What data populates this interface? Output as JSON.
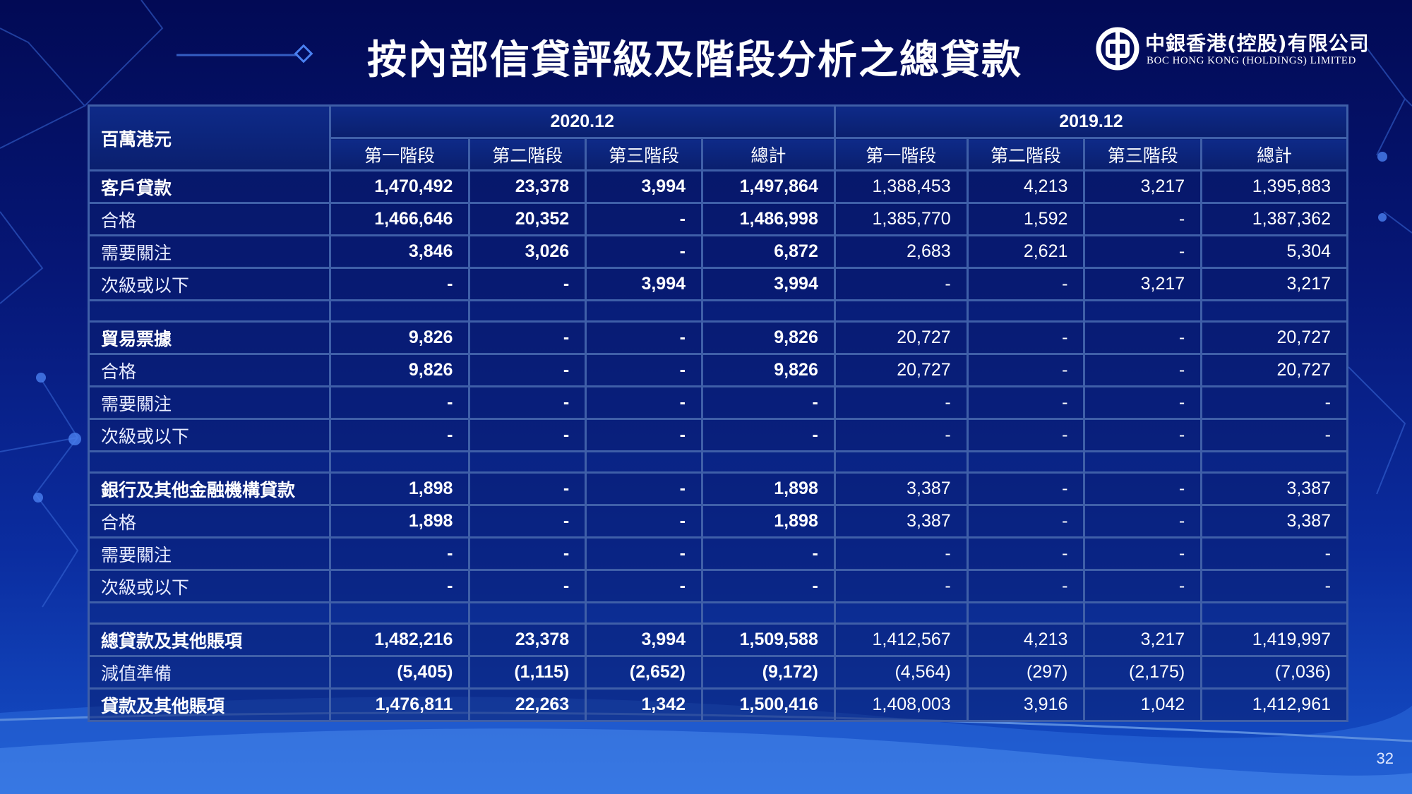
{
  "title": "按內部信貸評級及階段分析之總貸款",
  "logo": {
    "cn": "中銀香港(控股)有限公司",
    "en": "BOC HONG KONG (HOLDINGS) LIMITED",
    "icon": "boc-logo-icon"
  },
  "table": {
    "unit": "百萬港元",
    "periods": [
      "2020.12",
      "2019.12"
    ],
    "subheaders": [
      "第一階段",
      "第二階段",
      "第三階段",
      "總計",
      "第一階段",
      "第二階段",
      "第三階段",
      "總計"
    ],
    "rows": [
      {
        "type": "main",
        "label": "客戶貸款",
        "values": [
          "1,470,492",
          "23,378",
          "3,994",
          "1,497,864",
          "1,388,453",
          "4,213",
          "3,217",
          "1,395,883"
        ]
      },
      {
        "type": "sub",
        "label": "合格",
        "values": [
          "1,466,646",
          "20,352",
          "-",
          "1,486,998",
          "1,385,770",
          "1,592",
          "-",
          "1,387,362"
        ]
      },
      {
        "type": "sub",
        "label": "需要關注",
        "values": [
          "3,846",
          "3,026",
          "-",
          "6,872",
          "2,683",
          "2,621",
          "-",
          "5,304"
        ]
      },
      {
        "type": "sub",
        "label": "次級或以下",
        "values": [
          "-",
          "-",
          "3,994",
          "3,994",
          "-",
          "-",
          "3,217",
          "3,217"
        ]
      },
      {
        "type": "spacer"
      },
      {
        "type": "main",
        "label": "貿易票據",
        "values": [
          "9,826",
          "-",
          "-",
          "9,826",
          "20,727",
          "-",
          "-",
          "20,727"
        ]
      },
      {
        "type": "sub",
        "label": "合格",
        "values": [
          "9,826",
          "-",
          "-",
          "9,826",
          "20,727",
          "-",
          "-",
          "20,727"
        ]
      },
      {
        "type": "sub",
        "label": "需要關注",
        "values": [
          "-",
          "-",
          "-",
          "-",
          "-",
          "-",
          "-",
          "-"
        ]
      },
      {
        "type": "sub",
        "label": "次級或以下",
        "values": [
          "-",
          "-",
          "-",
          "-",
          "-",
          "-",
          "-",
          "-"
        ]
      },
      {
        "type": "spacer"
      },
      {
        "type": "main",
        "label": "銀行及其他金融機構貸款",
        "values": [
          "1,898",
          "-",
          "-",
          "1,898",
          "3,387",
          "-",
          "-",
          "3,387"
        ]
      },
      {
        "type": "sub",
        "label": "合格",
        "values": [
          "1,898",
          "-",
          "-",
          "1,898",
          "3,387",
          "-",
          "-",
          "3,387"
        ]
      },
      {
        "type": "sub",
        "label": "需要關注",
        "values": [
          "-",
          "-",
          "-",
          "-",
          "-",
          "-",
          "-",
          "-"
        ]
      },
      {
        "type": "sub",
        "label": "次級或以下",
        "values": [
          "-",
          "-",
          "-",
          "-",
          "-",
          "-",
          "-",
          "-"
        ]
      },
      {
        "type": "spacer"
      },
      {
        "type": "main",
        "label": "總貸款及其他賬項",
        "values": [
          "1,482,216",
          "23,378",
          "3,994",
          "1,509,588",
          "1,412,567",
          "4,213",
          "3,217",
          "1,419,997"
        ]
      },
      {
        "type": "sub",
        "label": "減值準備",
        "values": [
          "(5,405)",
          "(1,115)",
          "(2,652)",
          "(9,172)",
          "(4,564)",
          "(297)",
          "(2,175)",
          "(7,036)"
        ]
      },
      {
        "type": "main",
        "label": "貸款及其他賬項",
        "values": [
          "1,476,811",
          "22,263",
          "1,342",
          "1,500,416",
          "1,408,003",
          "3,916",
          "1,042",
          "1,412,961"
        ]
      }
    ]
  },
  "page_number": "32"
}
